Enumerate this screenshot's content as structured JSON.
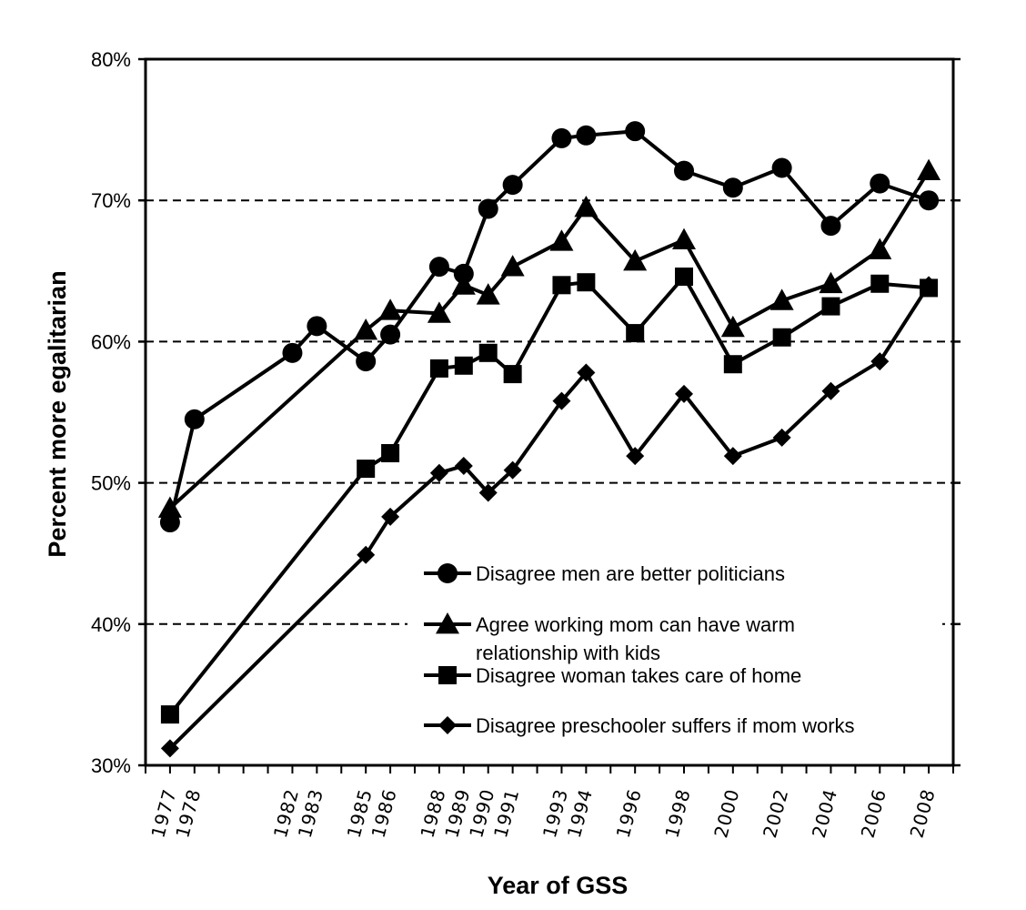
{
  "chart_data": {
    "type": "line",
    "title": "",
    "xlabel": "Year of GSS",
    "ylabel": "Percent more egalitarian",
    "xlim": [
      1976,
      2009
    ],
    "ylim": [
      30,
      80
    ],
    "y_ticks": [
      30,
      40,
      50,
      60,
      70,
      80
    ],
    "y_tick_labels": [
      "30%",
      "40%",
      "50%",
      "60%",
      "70%",
      "80%"
    ],
    "x_tick_labels": [
      "1977",
      "1978",
      "1982",
      "1983",
      "1985",
      "1986",
      "1988",
      "1989",
      "1990",
      "1991",
      "1993",
      "1994",
      "1996",
      "1998",
      "2000",
      "2002",
      "2004",
      "2006",
      "2008"
    ],
    "grid": "horizontal dashed",
    "legend_position": "lower-right",
    "series": [
      {
        "name": "Disagree men are better politicians",
        "marker": "circle",
        "x": [
          1977,
          1978,
          1982,
          1983,
          1985,
          1986,
          1988,
          1989,
          1990,
          1991,
          1993,
          1994,
          1996,
          1998,
          2000,
          2002,
          2004,
          2006,
          2008
        ],
        "values": [
          47.2,
          54.5,
          59.2,
          61.1,
          58.6,
          60.5,
          65.3,
          64.8,
          69.4,
          71.1,
          74.4,
          74.6,
          74.9,
          72.1,
          70.9,
          72.3,
          68.2,
          71.2,
          70.0
        ]
      },
      {
        "name": "Agree working mom can have warm relationship with kids",
        "marker": "triangle",
        "x": [
          1977,
          1985,
          1986,
          1988,
          1989,
          1990,
          1991,
          1993,
          1994,
          1996,
          1998,
          2000,
          2002,
          2004,
          2006,
          2008
        ],
        "values": [
          48.2,
          60.8,
          62.2,
          62.0,
          64.0,
          63.3,
          65.3,
          67.1,
          69.5,
          65.7,
          67.2,
          61.0,
          62.9,
          64.1,
          66.5,
          72.1
        ]
      },
      {
        "name": "Disagree woman takes care of home",
        "marker": "square",
        "x": [
          1977,
          1985,
          1986,
          1988,
          1989,
          1990,
          1991,
          1993,
          1994,
          1996,
          1998,
          2000,
          2002,
          2004,
          2006,
          2008
        ],
        "values": [
          33.6,
          51.0,
          52.1,
          58.1,
          58.3,
          59.2,
          57.7,
          64.0,
          64.2,
          60.6,
          64.6,
          58.4,
          60.3,
          62.5,
          64.1,
          63.8
        ]
      },
      {
        "name": "Disagree preschooler suffers if mom works",
        "marker": "diamond",
        "x": [
          1977,
          1985,
          1986,
          1988,
          1989,
          1990,
          1991,
          1993,
          1994,
          1996,
          1998,
          2000,
          2002,
          2004,
          2006,
          2008
        ],
        "values": [
          31.2,
          44.9,
          47.6,
          50.7,
          51.2,
          49.3,
          50.9,
          55.8,
          57.8,
          51.9,
          56.3,
          51.9,
          53.2,
          56.5,
          58.6,
          64.0
        ]
      }
    ],
    "legend_lines": [
      [
        "Disagree men are better politicians"
      ],
      [
        "Agree working mom can have warm",
        "relationship with kids"
      ],
      [
        "Disagree woman takes care of home"
      ],
      [
        "Disagree preschooler suffers if mom works"
      ]
    ]
  }
}
